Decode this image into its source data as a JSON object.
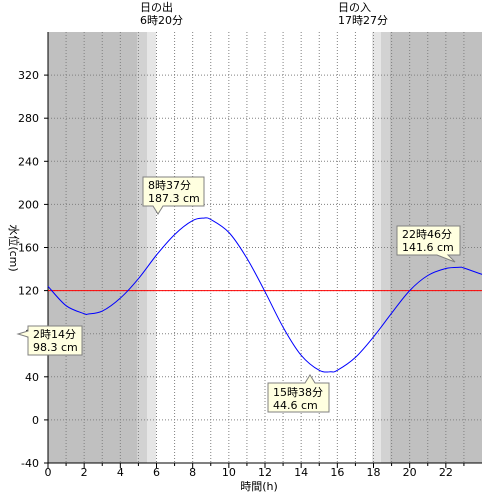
{
  "chart_data": {
    "type": "line",
    "xlabel": "時間(h)",
    "ylabel": "水位(cm)",
    "xlim": [
      0,
      24
    ],
    "ylim": [
      -40,
      360
    ],
    "x_ticks": [
      0,
      2,
      4,
      6,
      8,
      10,
      12,
      14,
      16,
      18,
      20,
      22
    ],
    "y_ticks": [
      -40,
      0,
      40,
      80,
      120,
      160,
      200,
      240,
      280,
      320
    ],
    "grid": true,
    "reference_level": 120,
    "colors": {
      "tide_line": "#0000ff",
      "reference_line": "#ff0000",
      "night": "#c0c0c0",
      "twilight_dark": "#d2d2d2",
      "twilight_light": "#e6e6e6",
      "day": "#ffffff",
      "label_bg": "#ffffe0"
    },
    "sun": {
      "sunrise_label": "日の出",
      "sunrise_time": "6時20分",
      "sunset_label": "日の入",
      "sunset_time": "17時27分"
    },
    "extremes": [
      {
        "time": "2時14分",
        "level": "98.3 cm",
        "x": 2.233,
        "y": 98.3
      },
      {
        "time": "8時37分",
        "level": "187.3 cm",
        "x": 8.617,
        "y": 187.3
      },
      {
        "time": "15時38分",
        "level": "44.6 cm",
        "x": 15.633,
        "y": 44.6
      },
      {
        "time": "22時46分",
        "level": "141.6 cm",
        "x": 22.767,
        "y": 141.6
      }
    ],
    "series": [
      {
        "x": [
          0,
          1,
          2,
          2.233,
          3,
          4,
          5,
          6,
          7,
          8,
          8.617,
          9,
          10,
          11,
          12,
          13,
          14,
          15,
          15.633,
          16,
          17,
          18,
          19,
          20,
          21,
          22,
          22.767,
          23,
          24
        ],
        "values": [
          124,
          106,
          98.6,
          98.3,
          101,
          113,
          131,
          153,
          172,
          185,
          187.3,
          186,
          174,
          150,
          119,
          86,
          60,
          46,
          44.6,
          46,
          58,
          77,
          99,
          120,
          134,
          140.5,
          141.6,
          141,
          135
        ]
      }
    ]
  }
}
